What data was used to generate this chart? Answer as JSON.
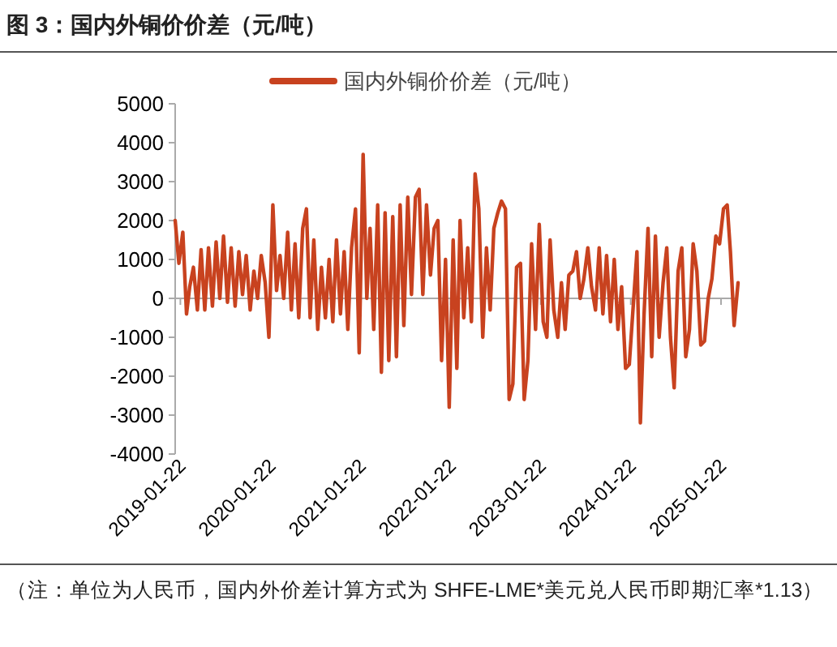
{
  "chart_data": {
    "type": "line",
    "title": "图 3：国内外铜价价差（元/吨）",
    "series": [
      {
        "name": "国内外铜价价差（元/吨）",
        "color": "#c8421f",
        "x": [
          "2019-01-01",
          "2019-01-16",
          "2019-02-01",
          "2019-02-16",
          "2019-03-01",
          "2019-03-16",
          "2019-04-01",
          "2019-04-16",
          "2019-05-01",
          "2019-05-16",
          "2019-06-01",
          "2019-06-16",
          "2019-07-01",
          "2019-07-16",
          "2019-08-01",
          "2019-08-16",
          "2019-09-01",
          "2019-09-16",
          "2019-10-01",
          "2019-10-16",
          "2019-11-01",
          "2019-11-16",
          "2019-12-01",
          "2019-12-16",
          "2020-01-01",
          "2020-01-16",
          "2020-02-01",
          "2020-02-16",
          "2020-03-01",
          "2020-03-16",
          "2020-04-01",
          "2020-04-16",
          "2020-05-01",
          "2020-05-16",
          "2020-06-01",
          "2020-06-16",
          "2020-07-01",
          "2020-07-16",
          "2020-08-01",
          "2020-08-16",
          "2020-09-01",
          "2020-09-16",
          "2020-10-01",
          "2020-10-16",
          "2020-11-01",
          "2020-11-16",
          "2020-12-01",
          "2020-12-16",
          "2021-01-01",
          "2021-01-16",
          "2021-02-01",
          "2021-02-16",
          "2021-03-01",
          "2021-03-16",
          "2021-04-01",
          "2021-04-16",
          "2021-05-01",
          "2021-05-16",
          "2021-06-01",
          "2021-06-16",
          "2021-07-01",
          "2021-07-16",
          "2021-08-01",
          "2021-08-16",
          "2021-09-01",
          "2021-09-16",
          "2021-10-01",
          "2021-10-16",
          "2021-11-01",
          "2021-11-16",
          "2021-12-01",
          "2021-12-16",
          "2022-01-01",
          "2022-01-16",
          "2022-02-01",
          "2022-02-16",
          "2022-03-01",
          "2022-03-16",
          "2022-04-01",
          "2022-04-16",
          "2022-05-01",
          "2022-05-16",
          "2022-06-01",
          "2022-06-16",
          "2022-07-01",
          "2022-07-16",
          "2022-08-01",
          "2022-08-16",
          "2022-09-01",
          "2022-09-16",
          "2022-10-01",
          "2022-10-16",
          "2022-11-01",
          "2022-11-16",
          "2022-12-01",
          "2022-12-16",
          "2023-01-01",
          "2023-01-16",
          "2023-02-01",
          "2023-02-16",
          "2023-03-01",
          "2023-03-16",
          "2023-04-01",
          "2023-04-16",
          "2023-05-01",
          "2023-05-16",
          "2023-06-01",
          "2023-06-16",
          "2023-07-01",
          "2023-07-16",
          "2023-08-01",
          "2023-08-16",
          "2023-09-01",
          "2023-09-16",
          "2023-10-01",
          "2023-10-16",
          "2023-11-01",
          "2023-11-16",
          "2023-12-01",
          "2023-12-16",
          "2024-01-01",
          "2024-01-16",
          "2024-02-01",
          "2024-02-16",
          "2024-03-01",
          "2024-03-16",
          "2024-04-01",
          "2024-04-16",
          "2024-05-01",
          "2024-05-16",
          "2024-06-01",
          "2024-06-16",
          "2024-07-01",
          "2024-07-16",
          "2024-08-01",
          "2024-08-16",
          "2024-09-01",
          "2024-09-16",
          "2024-10-01",
          "2024-10-16",
          "2024-11-01",
          "2024-11-16",
          "2024-12-01",
          "2024-12-16",
          "2025-01-01",
          "2025-01-16",
          "2025-02-01",
          "2025-02-16",
          "2025-03-01",
          "2025-03-16",
          "2025-04-01"
        ],
        "values": [
          2000,
          900,
          1700,
          -400,
          300,
          800,
          -300,
          1250,
          -300,
          1300,
          -200,
          1450,
          0,
          1600,
          -100,
          1300,
          -200,
          1200,
          100,
          1100,
          -300,
          700,
          0,
          1100,
          400,
          -1000,
          2400,
          200,
          1100,
          0,
          1700,
          -300,
          1400,
          -500,
          1800,
          2300,
          -500,
          1500,
          -800,
          800,
          -500,
          1000,
          -600,
          1500,
          -400,
          1200,
          -800,
          1300,
          2300,
          -1400,
          3700,
          0,
          1800,
          -800,
          2400,
          -1900,
          2200,
          -1600,
          2100,
          -1500,
          2400,
          -700,
          2600,
          100,
          2600,
          2800,
          100,
          2400,
          600,
          1800,
          2000,
          -1600,
          1000,
          -2800,
          1500,
          -1800,
          2000,
          -500,
          1300,
          -600,
          3200,
          2300,
          -1000,
          1300,
          -300,
          1800,
          2200,
          2500,
          2300,
          -2600,
          -2200,
          800,
          900,
          -2600,
          -1600,
          1400,
          -800,
          1900,
          -600,
          -1000,
          1500,
          -300,
          -1000,
          400,
          -800,
          600,
          700,
          1200,
          0,
          500,
          1300,
          300,
          -300,
          1300,
          -400,
          1100,
          -600,
          1000,
          -800,
          300,
          -1800,
          -1700,
          -200,
          1200,
          -3200,
          -400,
          1800,
          -1500,
          1600,
          -1000,
          400,
          1300,
          -1000,
          -2300,
          700,
          1300,
          -1500,
          -800,
          1400,
          700,
          -1200,
          -1100,
          0,
          500,
          1600,
          1400,
          2300,
          2400,
          1200,
          -700,
          400
        ]
      }
    ],
    "xlim": [
      "2019-01-01",
      "2025-04-01"
    ],
    "xticks": [
      "2019-01-22",
      "2020-01-22",
      "2021-01-22",
      "2022-01-22",
      "2023-01-22",
      "2024-01-22",
      "2025-01-22"
    ],
    "ylim": [
      -4000,
      5000
    ],
    "yticks": [
      -4000,
      -3000,
      -2000,
      -1000,
      0,
      1000,
      2000,
      3000,
      4000,
      5000
    ],
    "legend": "top",
    "marker": "none",
    "line_style": "solid",
    "annotations": [
      "（注：单位为人民币，国内外价差计算方式为 SHFE-LME*美元兑人民币即期汇率*1.13）"
    ]
  }
}
